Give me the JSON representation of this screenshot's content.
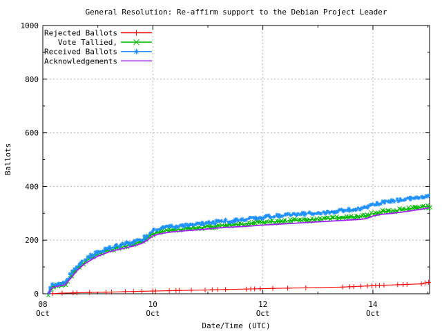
{
  "title": "General Resolution: Re-affirm support to the Debian Project Leader",
  "colors": {
    "background": "#ffffff",
    "border": "#000000",
    "grid": "#b4b4b4",
    "rejected": "#ff0000",
    "tallied": "#00b800",
    "received": "#1e90ff",
    "acknowledgements": "#a020f0"
  },
  "chart_data": {
    "type": "line",
    "title": "General Resolution: Re-affirm support to the Debian Project Leader",
    "xlabel": "Date/Time (UTC)",
    "ylabel": "Ballots",
    "xlim": [
      0,
      7.03
    ],
    "ylim": [
      0,
      1000
    ],
    "grid": true,
    "legend_position": "top-left",
    "x_unit": "days after 08 Oct 00:00 UTC",
    "x_ticks": [
      {
        "day": 0,
        "line1": "08",
        "line2": "Oct"
      },
      {
        "day": 2,
        "line1": "10",
        "line2": "Oct"
      },
      {
        "day": 4,
        "line1": "12",
        "line2": "Oct"
      },
      {
        "day": 6,
        "line1": "14",
        "line2": "Oct"
      }
    ],
    "x_minor_tick_days": [
      1,
      3,
      5,
      7
    ],
    "y_ticks": [
      {
        "value": 0,
        "label": "0"
      },
      {
        "value": 200,
        "label": "200"
      },
      {
        "value": 400,
        "label": "400"
      },
      {
        "value": 600,
        "label": "600"
      },
      {
        "value": 800,
        "label": "800"
      },
      {
        "value": 1000,
        "label": "1000"
      }
    ],
    "y_minor_tick_values": [
      100,
      300,
      500,
      700,
      900
    ],
    "series": [
      {
        "name": "Rejected Ballots",
        "color": "#ff0000",
        "marker": "plus",
        "style": "line-markers",
        "points": [
          [
            0.15,
            0
          ],
          [
            0.3,
            2
          ],
          [
            0.5,
            3
          ],
          [
            0.9,
            5
          ],
          [
            1.2,
            6
          ],
          [
            1.5,
            8
          ],
          [
            2.0,
            10
          ],
          [
            2.45,
            12
          ],
          [
            2.95,
            14
          ],
          [
            3.3,
            16
          ],
          [
            3.8,
            18
          ],
          [
            4.2,
            20
          ],
          [
            4.75,
            22
          ],
          [
            5.45,
            25
          ],
          [
            5.9,
            29
          ],
          [
            6.1,
            31
          ],
          [
            6.5,
            34
          ],
          [
            6.9,
            37
          ],
          [
            6.98,
            42
          ],
          [
            7.03,
            43
          ]
        ],
        "marker_days": [
          0.18,
          0.35,
          0.55,
          0.62,
          0.85,
          1.15,
          1.25,
          1.5,
          1.65,
          1.8,
          2.0,
          2.05,
          2.3,
          2.42,
          2.48,
          2.7,
          2.95,
          3.08,
          3.18,
          3.32,
          3.7,
          3.78,
          3.85,
          3.95,
          4.18,
          4.45,
          4.78,
          5.45,
          5.58,
          5.65,
          5.78,
          5.9,
          5.98,
          6.05,
          6.12,
          6.2,
          6.45,
          6.55,
          6.62,
          6.88,
          6.95,
          7.01
        ]
      },
      {
        "name": "Vote Tallied,",
        "color": "#00b800",
        "marker": "x",
        "style": "fuzzy",
        "points": [
          [
            0.1,
            0
          ],
          [
            0.13,
            14
          ],
          [
            0.16,
            26
          ],
          [
            0.22,
            31
          ],
          [
            0.32,
            34
          ],
          [
            0.4,
            38
          ],
          [
            0.46,
            50
          ],
          [
            0.5,
            62
          ],
          [
            0.56,
            79
          ],
          [
            0.62,
            93
          ],
          [
            0.7,
            107
          ],
          [
            0.75,
            117
          ],
          [
            0.82,
            126
          ],
          [
            0.9,
            136
          ],
          [
            1.0,
            147
          ],
          [
            1.1,
            155
          ],
          [
            1.2,
            162
          ],
          [
            1.35,
            170
          ],
          [
            1.5,
            177
          ],
          [
            1.65,
            184
          ],
          [
            1.8,
            194
          ],
          [
            1.9,
            206
          ],
          [
            2.0,
            223
          ],
          [
            2.1,
            229
          ],
          [
            2.25,
            235
          ],
          [
            2.4,
            239
          ],
          [
            2.6,
            242
          ],
          [
            2.8,
            245
          ],
          [
            2.95,
            249
          ],
          [
            3.1,
            252
          ],
          [
            3.3,
            255
          ],
          [
            3.55,
            259
          ],
          [
            3.8,
            263
          ],
          [
            4.0,
            266
          ],
          [
            4.25,
            269
          ],
          [
            4.5,
            272
          ],
          [
            4.75,
            275
          ],
          [
            5.0,
            278
          ],
          [
            5.25,
            281
          ],
          [
            5.5,
            284
          ],
          [
            5.75,
            287
          ],
          [
            5.88,
            290
          ],
          [
            6.0,
            299
          ],
          [
            6.15,
            305
          ],
          [
            6.35,
            309
          ],
          [
            6.55,
            314
          ],
          [
            6.75,
            319
          ],
          [
            6.9,
            323
          ],
          [
            7.03,
            328
          ]
        ]
      },
      {
        "name": "Received Ballots",
        "color": "#1e90ff",
        "marker": "asterisk",
        "style": "fuzzy",
        "points": [
          [
            0.1,
            1
          ],
          [
            0.13,
            18
          ],
          [
            0.16,
            30
          ],
          [
            0.22,
            35
          ],
          [
            0.32,
            38
          ],
          [
            0.4,
            42
          ],
          [
            0.46,
            55
          ],
          [
            0.5,
            68
          ],
          [
            0.56,
            86
          ],
          [
            0.62,
            100
          ],
          [
            0.7,
            115
          ],
          [
            0.75,
            125
          ],
          [
            0.82,
            134
          ],
          [
            0.9,
            144
          ],
          [
            1.0,
            155
          ],
          [
            1.1,
            163
          ],
          [
            1.2,
            170
          ],
          [
            1.35,
            178
          ],
          [
            1.5,
            185
          ],
          [
            1.65,
            192
          ],
          [
            1.8,
            203
          ],
          [
            1.9,
            215
          ],
          [
            2.0,
            234
          ],
          [
            2.1,
            241
          ],
          [
            2.25,
            247
          ],
          [
            2.4,
            251
          ],
          [
            2.6,
            254
          ],
          [
            2.8,
            258
          ],
          [
            2.95,
            263
          ],
          [
            3.1,
            266
          ],
          [
            3.3,
            270
          ],
          [
            3.55,
            275
          ],
          [
            3.8,
            280
          ],
          [
            4.0,
            285
          ],
          [
            4.25,
            290
          ],
          [
            4.5,
            294
          ],
          [
            4.75,
            298
          ],
          [
            5.0,
            302
          ],
          [
            5.25,
            307
          ],
          [
            5.5,
            312
          ],
          [
            5.75,
            317
          ],
          [
            5.88,
            321
          ],
          [
            6.0,
            331
          ],
          [
            6.15,
            340
          ],
          [
            6.35,
            346
          ],
          [
            6.55,
            352
          ],
          [
            6.75,
            358
          ],
          [
            6.9,
            362
          ],
          [
            7.03,
            368
          ]
        ]
      },
      {
        "name": "Acknowledgements",
        "color": "#a020f0",
        "marker": "none",
        "style": "line",
        "points": [
          [
            0.1,
            0
          ],
          [
            0.16,
            21
          ],
          [
            0.22,
            26
          ],
          [
            0.32,
            30
          ],
          [
            0.4,
            33
          ],
          [
            0.5,
            56
          ],
          [
            0.62,
            86
          ],
          [
            0.75,
            110
          ],
          [
            0.9,
            129
          ],
          [
            1.0,
            140
          ],
          [
            1.2,
            156
          ],
          [
            1.35,
            164
          ],
          [
            1.5,
            171
          ],
          [
            1.65,
            178
          ],
          [
            1.8,
            188
          ],
          [
            1.9,
            200
          ],
          [
            2.0,
            216
          ],
          [
            2.1,
            222
          ],
          [
            2.25,
            228
          ],
          [
            2.4,
            232
          ],
          [
            2.6,
            235
          ],
          [
            2.8,
            238
          ],
          [
            2.95,
            241
          ],
          [
            3.1,
            244
          ],
          [
            3.3,
            247
          ],
          [
            3.55,
            250
          ],
          [
            3.8,
            253
          ],
          [
            4.0,
            256
          ],
          [
            4.25,
            259
          ],
          [
            4.5,
            262
          ],
          [
            4.75,
            265
          ],
          [
            5.0,
            268
          ],
          [
            5.25,
            271
          ],
          [
            5.5,
            274
          ],
          [
            5.75,
            277
          ],
          [
            5.88,
            280
          ],
          [
            6.0,
            290
          ],
          [
            6.15,
            296
          ],
          [
            6.35,
            300
          ],
          [
            6.55,
            305
          ],
          [
            6.75,
            311
          ],
          [
            6.9,
            316
          ],
          [
            7.03,
            321
          ]
        ]
      }
    ]
  }
}
